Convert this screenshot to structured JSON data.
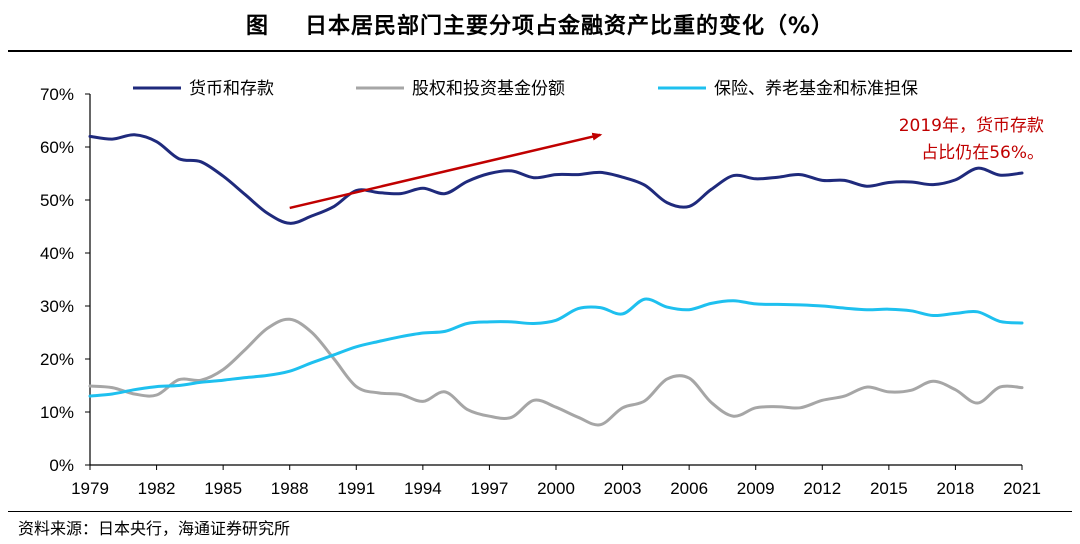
{
  "title": {
    "lead": "图",
    "main": "日本居民部门主要分项占金融资产比重的变化（%）"
  },
  "source": "资料来源：日本央行，海通证券研究所",
  "chart_data": {
    "type": "line",
    "xlim": [
      1979,
      2021
    ],
    "ylim": [
      0,
      70
    ],
    "x_ticks": [
      1979,
      1982,
      1985,
      1988,
      1991,
      1994,
      1997,
      2000,
      2003,
      2006,
      2009,
      2012,
      2015,
      2018,
      2021
    ],
    "y_ticks": [
      {
        "value": 0,
        "label": "0%"
      },
      {
        "value": 10,
        "label": "10%"
      },
      {
        "value": 20,
        "label": "20%"
      },
      {
        "value": 30,
        "label": "30%"
      },
      {
        "value": 40,
        "label": "40%"
      },
      {
        "value": 50,
        "label": "50%"
      },
      {
        "value": 60,
        "label": "60%"
      },
      {
        "value": 70,
        "label": "70%"
      }
    ],
    "grid": false,
    "legend_position": "top",
    "x": [
      1979,
      1980,
      1981,
      1982,
      1983,
      1984,
      1985,
      1986,
      1987,
      1988,
      1989,
      1990,
      1991,
      1992,
      1993,
      1994,
      1995,
      1996,
      1997,
      1998,
      1999,
      2000,
      2001,
      2002,
      2003,
      2004,
      2005,
      2006,
      2007,
      2008,
      2009,
      2010,
      2011,
      2012,
      2013,
      2014,
      2015,
      2016,
      2017,
      2018,
      2019,
      2020,
      2021
    ],
    "series": [
      {
        "name": "货币和存款",
        "color": "#1f2a7c",
        "values": [
          62.0,
          61.5,
          62.3,
          61.0,
          57.8,
          57.2,
          54.5,
          51.0,
          47.5,
          45.6,
          47.0,
          48.8,
          51.8,
          51.4,
          51.2,
          52.2,
          51.2,
          53.5,
          55.0,
          55.5,
          54.2,
          54.8,
          54.8,
          55.2,
          54.3,
          52.8,
          49.5,
          48.8,
          52.0,
          54.6,
          54.0,
          54.3,
          54.8,
          53.7,
          53.7,
          52.6,
          53.3,
          53.4,
          52.9,
          53.8,
          56.0,
          54.7,
          55.1
        ]
      },
      {
        "name": "股权和投资基金份额",
        "color": "#a6a6a6",
        "values": [
          14.9,
          14.6,
          13.4,
          13.2,
          16.1,
          16.0,
          18.0,
          21.8,
          25.8,
          27.5,
          25.0,
          20.0,
          14.8,
          13.6,
          13.3,
          12.0,
          13.8,
          10.5,
          9.2,
          9.0,
          12.2,
          10.9,
          9.0,
          7.6,
          10.8,
          12.1,
          16.2,
          16.4,
          11.8,
          9.2,
          10.8,
          11.0,
          10.8,
          12.2,
          13.0,
          14.7,
          13.8,
          14.1,
          15.8,
          14.2,
          11.7,
          14.7,
          14.6
        ]
      },
      {
        "name": "保险、养老基金和标准担保",
        "color": "#1ec0ef",
        "values": [
          13.0,
          13.4,
          14.2,
          14.8,
          15.0,
          15.6,
          16.0,
          16.5,
          16.9,
          17.7,
          19.3,
          20.8,
          22.3,
          23.3,
          24.2,
          24.9,
          25.2,
          26.7,
          27.0,
          27.0,
          26.7,
          27.3,
          29.5,
          29.7,
          28.5,
          31.3,
          29.8,
          29.3,
          30.5,
          31.0,
          30.4,
          30.3,
          30.2,
          30.0,
          29.6,
          29.3,
          29.4,
          29.1,
          28.2,
          28.6,
          28.9,
          27.1,
          26.8
        ]
      }
    ],
    "annotation": {
      "lines": [
        "2019年，货币存款",
        "占比仍在56%。"
      ],
      "color": "#c00000"
    },
    "arrow": {
      "color": "#c00000",
      "from": {
        "x": 1988,
        "y": 48.5
      },
      "to": {
        "x": 2002,
        "y": 62.3
      }
    }
  }
}
